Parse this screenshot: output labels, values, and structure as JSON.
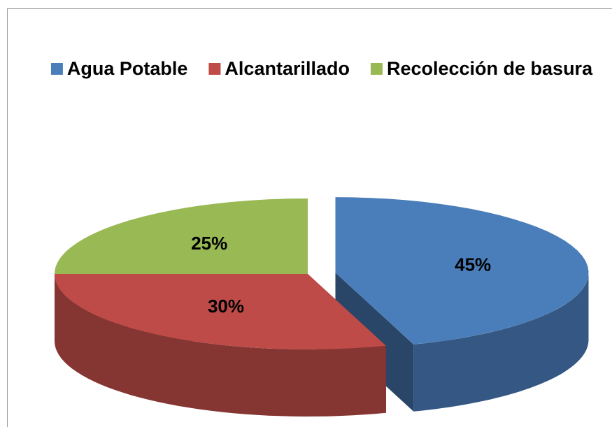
{
  "chart_data": {
    "type": "pie3d",
    "categories": [
      "Agua Potable",
      "Alcantarillado",
      "Recolección de basura"
    ],
    "values": [
      45,
      30,
      25
    ],
    "value_labels": [
      "45%",
      "30%",
      "25%"
    ],
    "colors": [
      "#4a7ebb",
      "#be4b48",
      "#98b954"
    ],
    "legend": "top"
  }
}
